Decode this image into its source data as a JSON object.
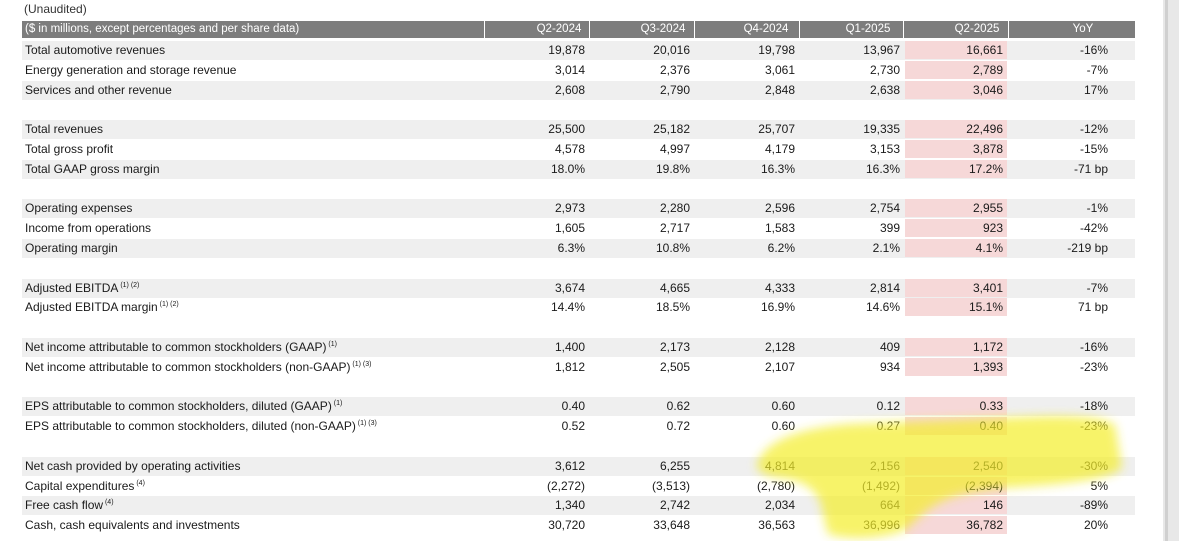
{
  "unaudited": "(Unaudited)",
  "header": {
    "label": "($ in millions, except percentages and per share data)",
    "columns": [
      "Q2-2024",
      "Q3-2024",
      "Q4-2024",
      "Q1-2025",
      "Q2-2025",
      "YoY"
    ]
  },
  "groups": [
    [
      {
        "label": "Total automotive revenues",
        "notes": "",
        "values": [
          "19,878",
          "20,016",
          "19,798",
          "13,967",
          "16,661",
          "-16%"
        ]
      },
      {
        "label": "Energy generation and storage revenue",
        "notes": "",
        "values": [
          "3,014",
          "2,376",
          "3,061",
          "2,730",
          "2,789",
          "-7%"
        ]
      },
      {
        "label": "Services and other revenue",
        "notes": "",
        "values": [
          "2,608",
          "2,790",
          "2,848",
          "2,638",
          "3,046",
          "17%"
        ]
      }
    ],
    [
      {
        "label": "Total revenues",
        "notes": "",
        "values": [
          "25,500",
          "25,182",
          "25,707",
          "19,335",
          "22,496",
          "-12%"
        ]
      },
      {
        "label": "Total gross profit",
        "notes": "",
        "values": [
          "4,578",
          "4,997",
          "4,179",
          "3,153",
          "3,878",
          "-15%"
        ]
      },
      {
        "label": "Total GAAP gross margin",
        "notes": "",
        "values": [
          "18.0%",
          "19.8%",
          "16.3%",
          "16.3%",
          "17.2%",
          "-71 bp"
        ]
      }
    ],
    [
      {
        "label": "Operating expenses",
        "notes": "",
        "values": [
          "2,973",
          "2,280",
          "2,596",
          "2,754",
          "2,955",
          "-1%"
        ]
      },
      {
        "label": "Income from operations",
        "notes": "",
        "values": [
          "1,605",
          "2,717",
          "1,583",
          "399",
          "923",
          "-42%"
        ]
      },
      {
        "label": "Operating margin",
        "notes": "",
        "values": [
          "6.3%",
          "10.8%",
          "6.2%",
          "2.1%",
          "4.1%",
          "-219 bp"
        ]
      }
    ],
    [
      {
        "label": "Adjusted EBITDA",
        "notes": "(1) (2)",
        "values": [
          "3,674",
          "4,665",
          "4,333",
          "2,814",
          "3,401",
          "-7%"
        ]
      },
      {
        "label": "Adjusted EBITDA margin",
        "notes": "(1) (2)",
        "values": [
          "14.4%",
          "18.5%",
          "16.9%",
          "14.6%",
          "15.1%",
          "71 bp"
        ]
      }
    ],
    [
      {
        "label": "Net income attributable to common stockholders (GAAP)",
        "notes": "(1)",
        "values": [
          "1,400",
          "2,173",
          "2,128",
          "409",
          "1,172",
          "-16%"
        ]
      },
      {
        "label": "Net income attributable to common stockholders (non-GAAP)",
        "notes": "(1) (3)",
        "values": [
          "1,812",
          "2,505",
          "2,107",
          "934",
          "1,393",
          "-23%"
        ]
      }
    ],
    [
      {
        "label": "EPS attributable to common stockholders, diluted (GAAP)",
        "notes": "(1)",
        "values": [
          "0.40",
          "0.62",
          "0.60",
          "0.12",
          "0.33",
          "-18%"
        ]
      },
      {
        "label": "EPS attributable to common stockholders, diluted (non-GAAP)",
        "notes": "(1) (3)",
        "values": [
          "0.52",
          "0.72",
          "0.60",
          "0.27",
          "0.40",
          "-23%"
        ]
      }
    ],
    [
      {
        "label": "Net cash provided by operating activities",
        "notes": "",
        "values": [
          "3,612",
          "6,255",
          "4,814",
          "2,156",
          "2,540",
          "-30%"
        ]
      },
      {
        "label": "Capital expenditures",
        "notes": "(4)",
        "values": [
          "(2,272)",
          "(3,513)",
          "(2,780)",
          "(1,492)",
          "(2,394)",
          "5%"
        ]
      },
      {
        "label": "Free cash flow",
        "notes": "(4)",
        "values": [
          "1,340",
          "2,742",
          "2,034",
          "664",
          "146",
          "-89%"
        ]
      },
      {
        "label": "Cash, cash equivalents and investments",
        "notes": "",
        "values": [
          "30,720",
          "33,648",
          "36,563",
          "36,996",
          "36,782",
          "20%"
        ]
      }
    ]
  ],
  "colors": {
    "header_bg": "#7d7d7d",
    "row_shade": "#efefef",
    "q2_2025_highlight": "#f6d8d8",
    "marker_yellow": "#f4ee2a"
  }
}
